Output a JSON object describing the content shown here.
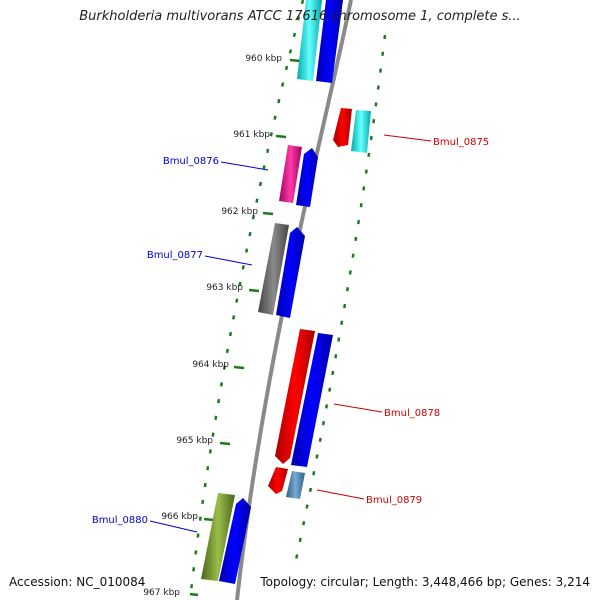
{
  "title": "Burkholderia multivorans ATCC 17616 chromosome 1, complete s...",
  "footer": {
    "accession": "Accession: NC_010084",
    "topology": "Topology: circular; Length: 3,448,466 bp; Genes: 3,214"
  },
  "ticks": [
    "960 kbp",
    "961 kbp",
    "962 kbp",
    "963 kbp",
    "964 kbp",
    "965 kbp",
    "966 kbp",
    "967 kbp"
  ],
  "gene_labels": [
    {
      "text": "Bmul_0875",
      "color": "#cc0000"
    },
    {
      "text": "Bmul_0876",
      "color": "#0000cc"
    },
    {
      "text": "Bmul_0877",
      "color": "#0000cc"
    },
    {
      "text": "Bmul_0878",
      "color": "#cc0000"
    },
    {
      "text": "Bmul_0879",
      "color": "#cc0000"
    },
    {
      "text": "Bmul_0880",
      "color": "#0000cc"
    }
  ],
  "colors": {
    "backbone": "#8a8a8a",
    "tick_marks": "#1f7a1f",
    "cds_forward": "#0000ee",
    "cds_reverse": "#ee0000",
    "cog_cyan": "#00dddd",
    "cog_magenta": "#e0008c",
    "cog_gray": "#666666",
    "cog_steelblue": "#4682b4",
    "cog_olive": "#6b8e23"
  }
}
